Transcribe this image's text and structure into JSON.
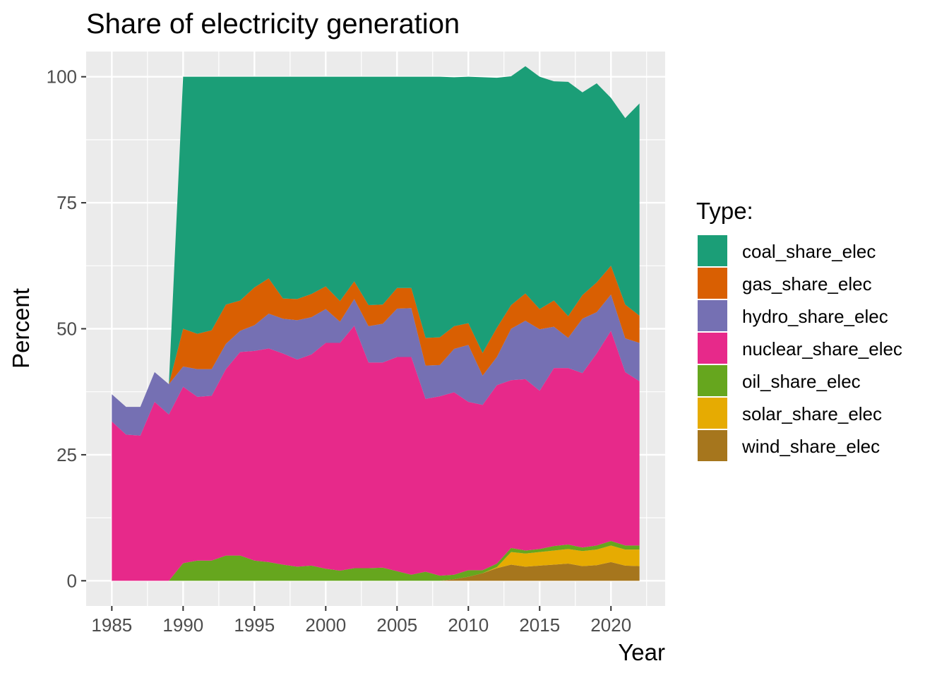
{
  "chart_data": {
    "type": "area",
    "stacked": true,
    "title": "Share of electricity generation",
    "xlabel": "Year",
    "ylabel": "Percent",
    "xlim": [
      1983.2,
      2023.8
    ],
    "ylim": [
      -5,
      105
    ],
    "x_ticks": [
      1985,
      1990,
      1995,
      2000,
      2005,
      2010,
      2015,
      2020
    ],
    "y_ticks": [
      0,
      25,
      50,
      75,
      100
    ],
    "grid": true,
    "legend_title": "Type:",
    "legend_position": "right",
    "x": [
      1985,
      1986,
      1987,
      1988,
      1989,
      1990,
      1991,
      1992,
      1993,
      1994,
      1995,
      1996,
      1997,
      1998,
      1999,
      2000,
      2001,
      2002,
      2003,
      2004,
      2005,
      2006,
      2007,
      2008,
      2009,
      2010,
      2011,
      2012,
      2013,
      2014,
      2015,
      2016,
      2017,
      2018,
      2019,
      2020,
      2021,
      2022
    ],
    "series": [
      {
        "name": "wind_share_elec",
        "color": "#a6761d",
        "values": [
          0,
          0,
          0,
          0,
          0,
          0,
          0,
          0,
          0,
          0,
          0,
          0,
          0,
          0,
          0,
          0,
          0,
          0,
          0,
          0,
          0,
          0,
          0,
          0,
          0.3,
          0.8,
          1.5,
          2.5,
          3.2,
          2.8,
          3.0,
          3.2,
          3.4,
          2.9,
          3.1,
          3.7,
          3.0,
          2.9
        ]
      },
      {
        "name": "solar_share_elec",
        "color": "#e6ab02",
        "values": [
          0,
          0,
          0,
          0,
          0,
          0,
          0,
          0,
          0,
          0,
          0,
          0,
          0,
          0,
          0,
          0,
          0,
          0,
          0,
          0,
          0,
          0,
          0,
          0,
          0,
          0,
          0,
          0.2,
          2.5,
          2.6,
          2.7,
          2.8,
          2.9,
          3.0,
          3.1,
          3.3,
          3.2,
          3.3
        ]
      },
      {
        "name": "oil_share_elec",
        "color": "#66a61e",
        "values": [
          0,
          0,
          0,
          0,
          0,
          3.5,
          4.0,
          4.0,
          5.0,
          5.0,
          4.0,
          3.7,
          3.2,
          2.8,
          3.0,
          2.4,
          2.0,
          2.5,
          2.5,
          2.6,
          1.9,
          1.2,
          1.8,
          1.0,
          0.9,
          1.3,
          0.6,
          0.7,
          0.8,
          0.6,
          0.6,
          0.9,
          0.9,
          0.7,
          0.8,
          0.9,
          0.8,
          0.8
        ]
      },
      {
        "name": "nuclear_share_elec",
        "color": "#e7298a",
        "values": [
          31.6,
          29.0,
          28.8,
          35.5,
          33.0,
          35.0,
          32.5,
          32.7,
          37.0,
          40.4,
          41.6,
          42.4,
          41.9,
          41.1,
          41.9,
          44.8,
          45.2,
          48.1,
          40.8,
          40.7,
          42.5,
          43.2,
          34.3,
          35.6,
          36.2,
          33.4,
          32.8,
          35.4,
          33.3,
          34.0,
          31.4,
          35.3,
          35.0,
          34.6,
          38.1,
          41.7,
          34.4,
          32.6
        ]
      },
      {
        "name": "hydro_share_elec",
        "color": "#7570b3",
        "values": [
          5.4,
          5.5,
          5.7,
          5.9,
          6.0,
          4.0,
          5.5,
          5.3,
          5.0,
          4.2,
          5.1,
          6.9,
          6.9,
          7.8,
          7.4,
          6.7,
          4.2,
          5.3,
          7.2,
          7.7,
          9.6,
          9.7,
          6.6,
          6.2,
          8.6,
          11.3,
          5.8,
          5.6,
          10.2,
          11.6,
          12.2,
          8.2,
          6.0,
          10.8,
          8.2,
          7.2,
          6.7,
          7.6
        ]
      },
      {
        "name": "gas_share_elec",
        "color": "#d95f02",
        "values": [
          0,
          0,
          0,
          0,
          0,
          7.5,
          7.0,
          7.7,
          7.8,
          6.0,
          7.5,
          7.0,
          4.0,
          4.2,
          4.6,
          4.5,
          4.1,
          3.5,
          4.2,
          3.8,
          4.1,
          4.0,
          5.5,
          5.5,
          4.5,
          4.3,
          4.5,
          5.8,
          4.7,
          5.4,
          4.0,
          5.2,
          4.3,
          4.7,
          5.9,
          5.7,
          6.7,
          5.4
        ]
      },
      {
        "name": "coal_share_elec",
        "color": "#1b9e77",
        "values": [
          0,
          0,
          0,
          0,
          0,
          50.0,
          51.0,
          50.3,
          45.2,
          44.4,
          41.8,
          40.0,
          44.0,
          44.1,
          43.1,
          41.6,
          44.5,
          40.6,
          45.3,
          45.2,
          41.9,
          41.9,
          51.8,
          51.7,
          49.4,
          48.9,
          54.7,
          49.6,
          45.4,
          45.1,
          46.1,
          43.5,
          46.5,
          40.2,
          39.5,
          33.3,
          37.0,
          42.1
        ]
      }
    ]
  }
}
